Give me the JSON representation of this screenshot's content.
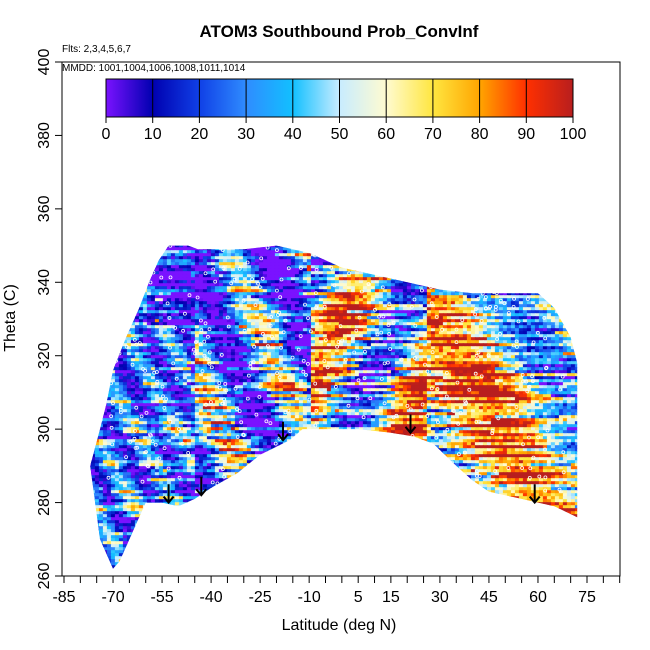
{
  "chart_data": {
    "type": "heatmap",
    "title": "ATOM3 Southbound Prob_ConvInf",
    "subtitle_flights": "Flts: 2,3,4,5,6,7",
    "subtitle_dates": "MMDD: 1001,1004,1006,1008,1011,1014",
    "xlabel": "Latitude (deg N)",
    "ylabel": "Theta (C)",
    "xlim": [
      -85,
      85
    ],
    "ylim": [
      260,
      400
    ],
    "x_ticks": [
      "-85",
      "-70",
      "-55",
      "-40",
      "-25",
      "-10",
      "5",
      "15",
      "30",
      "45",
      "60",
      "75"
    ],
    "x_tick_values": [
      -85,
      -70,
      -55,
      -40,
      -25,
      -10,
      5,
      15,
      30,
      45,
      60,
      75
    ],
    "y_ticks": [
      "260",
      "280",
      "300",
      "320",
      "340",
      "360",
      "380",
      "400"
    ],
    "y_tick_values": [
      260,
      280,
      300,
      320,
      340,
      360,
      380,
      400
    ],
    "colorbar": {
      "ticks": [
        "0",
        "10",
        "20",
        "30",
        "40",
        "50",
        "60",
        "70",
        "80",
        "90",
        "100"
      ],
      "range": [
        0,
        100
      ],
      "colors": [
        "#7a12ff",
        "#0000b0",
        "#1040e6",
        "#2f8cff",
        "#12c0ff",
        "#c8ecff",
        "#fffbd0",
        "#ffe640",
        "#ffa500",
        "#ff3000",
        "#b81e1e"
      ]
    },
    "domain_outline": {
      "top": [
        [
          -72,
          307
        ],
        [
          -70,
          316
        ],
        [
          -66,
          325
        ],
        [
          -62,
          333
        ],
        [
          -59,
          340
        ],
        [
          -56,
          346
        ],
        [
          -53,
          350
        ],
        [
          -50,
          350
        ],
        [
          -47,
          350
        ],
        [
          -44,
          349
        ],
        [
          -40,
          349
        ],
        [
          -30,
          349
        ],
        [
          -20,
          350
        ],
        [
          -10,
          348
        ],
        [
          0,
          344
        ],
        [
          10,
          342
        ],
        [
          20,
          340
        ],
        [
          30,
          338
        ],
        [
          40,
          337
        ],
        [
          50,
          337
        ],
        [
          60,
          337
        ],
        [
          65,
          333
        ],
        [
          70,
          325
        ],
        [
          72,
          318
        ],
        [
          72,
          300
        ]
      ],
      "bottom": [
        [
          72,
          276
        ],
        [
          65,
          279
        ],
        [
          60,
          280
        ],
        [
          55,
          281
        ],
        [
          45,
          283
        ],
        [
          40,
          286
        ],
        [
          35,
          290
        ],
        [
          28,
          296
        ],
        [
          22,
          298
        ],
        [
          15,
          299
        ],
        [
          5,
          300
        ],
        [
          -5,
          300
        ],
        [
          -12,
          300
        ],
        [
          -16,
          297
        ],
        [
          -25,
          293
        ],
        [
          -32,
          288
        ],
        [
          -40,
          284
        ],
        [
          -45,
          281
        ],
        [
          -50,
          279
        ],
        [
          -55,
          280
        ],
        [
          -60,
          280
        ],
        [
          -65,
          270
        ],
        [
          -68,
          264
        ],
        [
          -70,
          262
        ],
        [
          -74,
          270
        ],
        [
          -77,
          290
        ],
        [
          -74,
          300
        ],
        [
          -72,
          307
        ]
      ]
    },
    "arrows": [
      {
        "lat": -53,
        "theta_top": 285,
        "theta_tip": 280
      },
      {
        "lat": -43,
        "theta_top": 287,
        "theta_tip": 282
      },
      {
        "lat": -18,
        "theta_top": 302,
        "theta_tip": 297
      },
      {
        "lat": 21,
        "theta_top": 304,
        "theta_tip": 299
      },
      {
        "lat": 59,
        "theta_top": 285,
        "theta_tip": 280
      }
    ],
    "grid": false,
    "legend": "colorbar top, horizontal"
  }
}
